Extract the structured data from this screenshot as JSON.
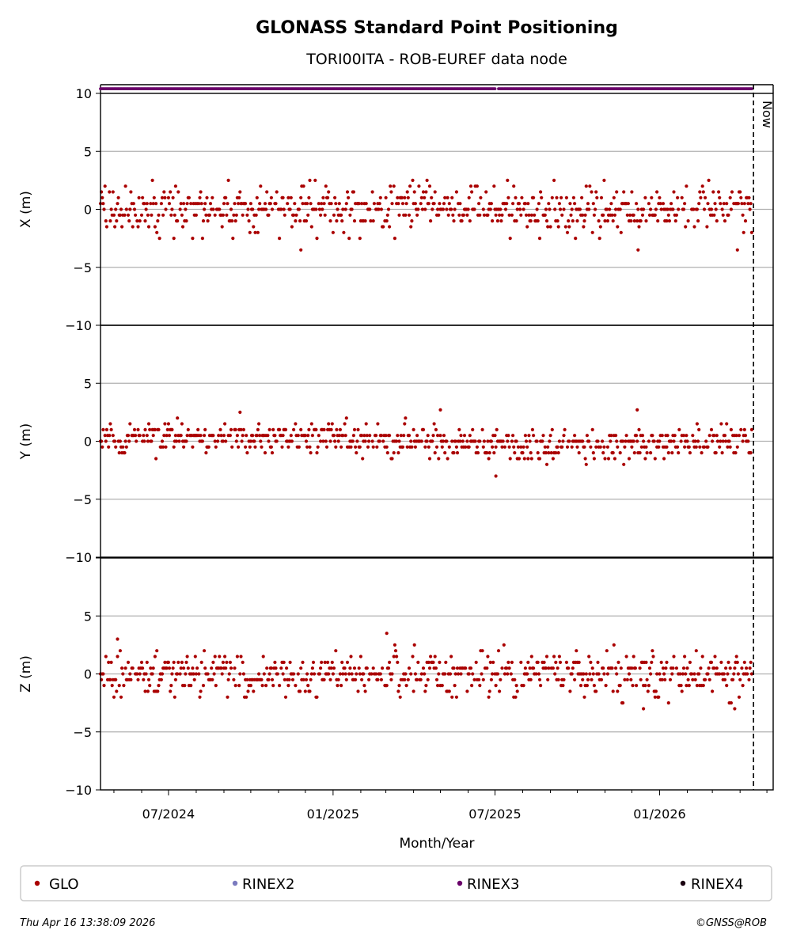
{
  "chart_data": {
    "type": "scatter",
    "title": "GLONASS Standard Point Positioning",
    "subtitle": "TORI00ITA - ROB-EUREF data node",
    "xlabel": "Month/Year",
    "x_ticks": [
      "07/2024",
      "01/2025",
      "07/2025",
      "01/2026"
    ],
    "x_range": [
      "2024-04-16",
      "2026-05-08"
    ],
    "now_date": "2026-04-16",
    "now_label": "Now",
    "grid": true,
    "legend_placement": "bottom",
    "panels": [
      {
        "ylabel": "X (m)",
        "ylim": [
          -10,
          10
        ],
        "yticks": [
          "10",
          "5",
          "0",
          "−5",
          "−10"
        ],
        "jitter": 1.05,
        "drift": 0.0,
        "outliers": [
          {
            "date": "2024-11-26",
            "value": -3.5
          },
          {
            "date": "2025-12-08",
            "value": -3.5
          },
          {
            "date": "2026-03-29",
            "value": -3.5
          }
        ]
      },
      {
        "ylabel": "Y (m)",
        "ylim": [
          -10,
          10
        ],
        "yticks": [
          "",
          "5",
          "0",
          "−5",
          "−10"
        ],
        "jitter": 0.65,
        "drift": 0.35,
        "outliers": [
          {
            "date": "2025-07-02",
            "value": -3.0
          },
          {
            "date": "2025-12-07",
            "value": 2.7
          },
          {
            "date": "2025-05-01",
            "value": 2.7
          }
        ]
      },
      {
        "ylabel": "Z (m)",
        "ylim": [
          -10,
          10
        ],
        "yticks": [
          "",
          "5",
          "0",
          "−5",
          "−10"
        ],
        "jitter": 0.95,
        "drift": 0.0,
        "outliers": [
          {
            "date": "2024-05-05",
            "value": 3.0
          },
          {
            "date": "2025-03-02",
            "value": 3.5
          },
          {
            "date": "2026-03-26",
            "value": -3.0
          },
          {
            "date": "2025-12-14",
            "value": -3.0
          }
        ]
      }
    ],
    "series": [
      {
        "name": "GLO",
        "color": "#aa0000",
        "date_range": [
          "2024-04-16",
          "2026-04-14"
        ]
      },
      {
        "name": "RINEX2",
        "color": "#7b7bbf"
      },
      {
        "name": "RINEX3",
        "color": "#6a006a",
        "availability_ranges": [
          [
            "2024-04-16",
            "2025-07-01"
          ],
          [
            "2025-07-05",
            "2026-04-14"
          ]
        ],
        "availability_level": 10.4
      },
      {
        "name": "RINEX4",
        "color": "#1a0010"
      }
    ]
  },
  "footer": {
    "timestamp": "Thu Apr 16 13:38:09 2026",
    "copyright": "©GNSS@ROB"
  }
}
